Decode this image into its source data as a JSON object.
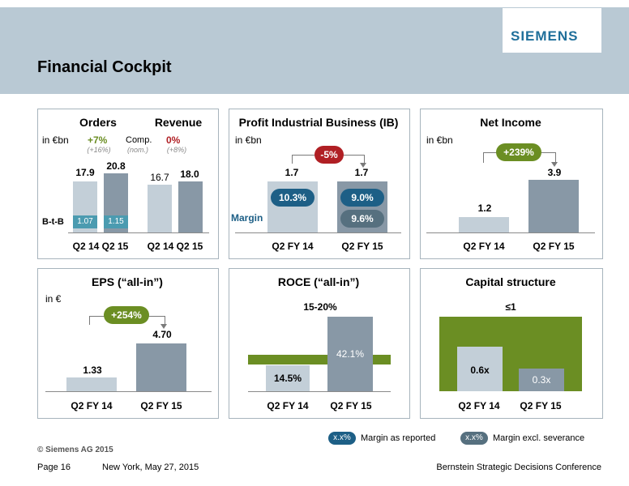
{
  "header": {
    "title": "Financial Cockpit",
    "logo": "SIEMENS"
  },
  "orders_revenue": {
    "title_orders": "Orders",
    "title_revenue": "Revenue",
    "unit": "in €bn",
    "orders_change": "+7%",
    "orders_change_sub": "(+16%)",
    "comp_label": "Comp.",
    "comp_sub": "(nom.)",
    "revenue_change": "0%",
    "revenue_change_sub": "(+8%)",
    "orders_q2_14": "17.9",
    "orders_q2_15": "20.8",
    "revenue_q2_14": "16.7",
    "revenue_q2_15": "18.0",
    "btb_label": "B-t-B",
    "btb_q2_14": "1.07",
    "btb_q2_15": "1.15",
    "x_orders": "Q2 14 Q2 15",
    "x_revenue": "Q2 14 Q2 15"
  },
  "profit_ib": {
    "title": "Profit Industrial Business (IB)",
    "unit": "in €bn",
    "change": "-5%",
    "q2_fy14": "1.7",
    "q2_fy15": "1.7",
    "margin_label": "Margin",
    "margin_fy14": "10.3%",
    "margin_fy15_reported": "9.0%",
    "margin_fy15_excl": "9.6%",
    "x_fy14": "Q2 FY 14",
    "x_fy15": "Q2 FY 15"
  },
  "net_income": {
    "title": "Net Income",
    "unit": "in €bn",
    "change": "+239%",
    "q2_fy14": "1.2",
    "q2_fy15": "3.9",
    "x_fy14": "Q2 FY 14",
    "x_fy15": "Q2 FY 15"
  },
  "eps": {
    "title": "EPS (“all-in”)",
    "unit": "in €",
    "change": "+254%",
    "q2_fy14": "1.33",
    "q2_fy15": "4.70",
    "x_fy14": "Q2 FY 14",
    "x_fy15": "Q2 FY 15"
  },
  "roce": {
    "title": "ROCE (“all-in”)",
    "target": "15-20%",
    "q2_fy14": "14.5%",
    "q2_fy15": "42.1%",
    "x_fy14": "Q2 FY 14",
    "x_fy15": "Q2 FY 15"
  },
  "capital": {
    "title": "Capital structure",
    "target": "≤1",
    "q2_fy14": "0.6x",
    "q2_fy15": "0.3x",
    "x_fy14": "Q2 FY 14",
    "x_fy15": "Q2 FY 15"
  },
  "legend": {
    "swatch": "x.x%",
    "reported": "Margin as reported",
    "excl": "Margin excl. severance"
  },
  "footer": {
    "copyright": "© Siemens AG 2015",
    "page": "Page 16",
    "location_date": "New York, May 27, 2015",
    "conference": "Bernstein Strategic Decisions Conference"
  },
  "colors": {
    "accent_green": "#6b8e23",
    "accent_red": "#b01f24",
    "accent_blue": "#1d5f86",
    "bar_light": "#c3cfd8",
    "bar_dark": "#8898a6"
  }
}
